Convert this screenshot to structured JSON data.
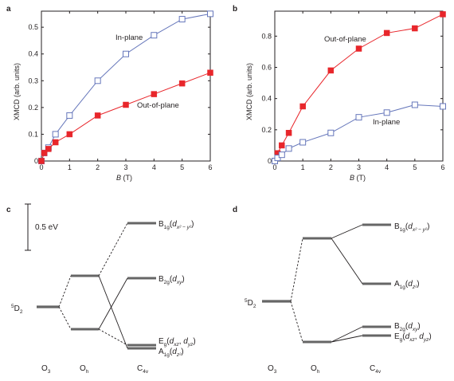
{
  "colors": {
    "in_plane": "#6677bb",
    "out_of_plane": "#e8262b",
    "level": "#666666",
    "ink": "#231f20"
  },
  "chart_data": [
    {
      "panel": "a",
      "type": "line",
      "xlabel": "B (T)",
      "ylabel": "XMCD (arb. units)",
      "xlim": [
        0,
        6
      ],
      "ylim": [
        0,
        0.56
      ],
      "xticks": [
        "0",
        "1",
        "2",
        "3",
        "4",
        "5",
        "6"
      ],
      "xtick_values": [
        0,
        1,
        2,
        3,
        4,
        5,
        6
      ],
      "yticks": [
        "0",
        "0.1",
        "0.2",
        "0.3",
        "0.4",
        "0.5"
      ],
      "ytick_values": [
        0,
        0.1,
        0.2,
        0.3,
        0.4,
        0.5
      ],
      "grid": false,
      "series": [
        {
          "name": "In-plane",
          "marker": "open-square",
          "color": "#6677bb",
          "x": [
            0,
            0.1,
            0.25,
            0.5,
            1,
            2,
            3,
            4,
            5,
            6
          ],
          "y": [
            0.0,
            0.03,
            0.05,
            0.1,
            0.17,
            0.3,
            0.4,
            0.47,
            0.53,
            0.55
          ]
        },
        {
          "name": "Out-of-plane",
          "marker": "filled-square",
          "color": "#e8262b",
          "x": [
            0,
            0.1,
            0.25,
            0.5,
            1,
            2,
            3,
            4,
            5,
            6
          ],
          "y": [
            0.0,
            0.03,
            0.045,
            0.07,
            0.1,
            0.17,
            0.21,
            0.25,
            0.29,
            0.33
          ]
        }
      ]
    },
    {
      "panel": "b",
      "type": "line",
      "xlabel": "B (T)",
      "ylabel": "XMCD (arb. units)",
      "xlim": [
        0,
        6
      ],
      "ylim": [
        0,
        0.96
      ],
      "xticks": [
        "0",
        "1",
        "2",
        "3",
        "4",
        "5",
        "6"
      ],
      "xtick_values": [
        0,
        1,
        2,
        3,
        4,
        5,
        6
      ],
      "yticks": [
        "0",
        "0.2",
        "0.4",
        "0.6",
        "0.8"
      ],
      "ytick_values": [
        0,
        0.2,
        0.4,
        0.6,
        0.8
      ],
      "grid": false,
      "series": [
        {
          "name": "Out-of-plane",
          "marker": "filled-square",
          "color": "#e8262b",
          "x": [
            0,
            0.1,
            0.25,
            0.5,
            1,
            2,
            3,
            4,
            5,
            6
          ],
          "y": [
            0.0,
            0.05,
            0.1,
            0.18,
            0.35,
            0.58,
            0.72,
            0.82,
            0.85,
            0.94
          ]
        },
        {
          "name": "In-plane",
          "marker": "open-square",
          "color": "#6677bb",
          "x": [
            0,
            0.1,
            0.25,
            0.5,
            1,
            2,
            3,
            4,
            5,
            6
          ],
          "y": [
            0.0,
            0.02,
            0.04,
            0.08,
            0.12,
            0.18,
            0.28,
            0.31,
            0.36,
            0.35
          ]
        }
      ]
    }
  ],
  "panels": {
    "a": {
      "letter": "a",
      "xlabel_var": "B",
      "xlabel_unit": " (T)",
      "ylabel": "XMCD (arb. units)",
      "label_in": "In-plane",
      "label_out": "Out-of-plane"
    },
    "b": {
      "letter": "b",
      "xlabel_var": "B",
      "xlabel_unit": " (T)",
      "ylabel": "XMCD (arb. units)",
      "label_in": "In-plane",
      "label_out": "Out-of-plane"
    },
    "c": {
      "letter": "c",
      "scale_label": "0.5 eV",
      "state_5d2": {
        "sup": "5",
        "main": "D",
        "sub": "2"
      },
      "columns": [
        {
          "main": "O",
          "sub": "3"
        },
        {
          "main": "O",
          "sub": "h"
        },
        {
          "main": "C",
          "sub": "4v"
        }
      ],
      "levels_c4v": [
        {
          "id": "b1g",
          "main": "B",
          "sub": "1g",
          "orb": "d",
          "orb_sub": "x² − y²"
        },
        {
          "id": "b2g",
          "main": "B",
          "sub": "2g",
          "orb": "d",
          "orb_sub": "xy"
        },
        {
          "id": "eg",
          "main": "E",
          "sub": "g",
          "orb": "d",
          "orb_sub": "xz",
          "orb2": "d",
          "orb2_sub": "yz"
        },
        {
          "id": "a1g",
          "main": "A",
          "sub": "1g",
          "orb": "d",
          "orb_sub": "z²"
        }
      ]
    },
    "d": {
      "letter": "d",
      "state_5d2": {
        "sup": "5",
        "main": "D",
        "sub": "2"
      },
      "columns": [
        {
          "main": "O",
          "sub": "3"
        },
        {
          "main": "O",
          "sub": "h"
        },
        {
          "main": "C",
          "sub": "4v"
        }
      ],
      "levels_c4v": [
        {
          "id": "b1g",
          "main": "B",
          "sub": "1g",
          "orb": "d",
          "orb_sub": "x² − y²"
        },
        {
          "id": "a1g",
          "main": "A",
          "sub": "1g",
          "orb": "d",
          "orb_sub": "z²"
        },
        {
          "id": "b2g",
          "main": "B",
          "sub": "2g",
          "orb": "d",
          "orb_sub": "xy"
        },
        {
          "id": "eg",
          "main": "E",
          "sub": "g",
          "orb": "d",
          "orb_sub": "xz",
          "orb2": "d",
          "orb2_sub": "yz"
        }
      ]
    }
  }
}
